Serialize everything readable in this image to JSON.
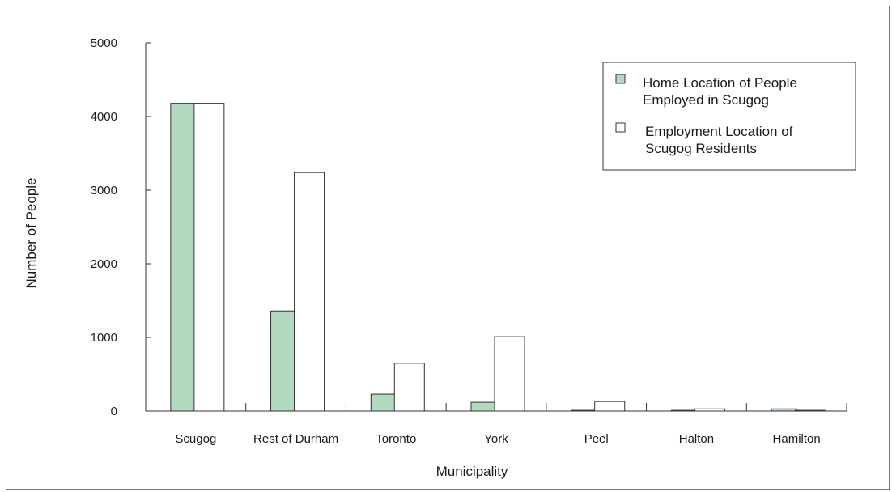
{
  "chart_data": {
    "type": "bar",
    "xlabel": "Municipality",
    "ylabel": "Number of People",
    "ylim": [
      0,
      5000
    ],
    "yticks": [
      0,
      1000,
      2000,
      3000,
      4000,
      5000
    ],
    "categories": [
      "Scugog",
      "Rest of Durham",
      "Toronto",
      "York",
      "Peel",
      "Halton",
      "Hamilton"
    ],
    "series": [
      {
        "name": "Home Location of People Employed in Scugog",
        "legend_lines": [
          "Home Location of People",
          "Employed in Scugog"
        ],
        "color": "#b3d9c0",
        "values": [
          4180,
          1360,
          230,
          120,
          10,
          10,
          30
        ]
      },
      {
        "name": "Employment Location of Scugog Residents",
        "legend_lines": [
          "Employment Location of",
          "Scugog Residents"
        ],
        "color": "#ffffff",
        "values": [
          4180,
          3240,
          650,
          1010,
          130,
          30,
          10
        ]
      }
    ],
    "grid": false,
    "legend_position": "top-right"
  }
}
